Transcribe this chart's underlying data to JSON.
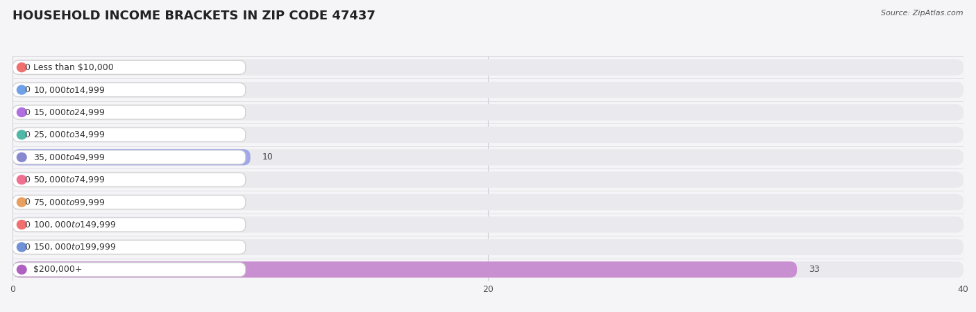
{
  "title": "HOUSEHOLD INCOME BRACKETS IN ZIP CODE 47437",
  "source": "Source: ZipAtlas.com",
  "categories": [
    "Less than $10,000",
    "$10,000 to $14,999",
    "$15,000 to $24,999",
    "$25,000 to $34,999",
    "$35,000 to $49,999",
    "$50,000 to $74,999",
    "$75,000 to $99,999",
    "$100,000 to $149,999",
    "$150,000 to $199,999",
    "$200,000+"
  ],
  "values": [
    0,
    0,
    0,
    0,
    10,
    0,
    0,
    0,
    0,
    33
  ],
  "bar_colors": [
    "#f4a0a0",
    "#a0c4f4",
    "#c9a0f4",
    "#7ecec4",
    "#a0a8e8",
    "#f4a0c0",
    "#f4cca0",
    "#f4a0a0",
    "#a0b8f4",
    "#c890d0"
  ],
  "icon_colors": [
    "#f07070",
    "#70a0e8",
    "#b070e0",
    "#50b8a8",
    "#8888d0",
    "#f07090",
    "#e8a060",
    "#f07070",
    "#7090d8",
    "#b060c0"
  ],
  "bg_color": "#f5f5f8",
  "bar_bg_color": "#eaeaee",
  "xlim": [
    0,
    40
  ],
  "xticks": [
    0,
    20,
    40
  ],
  "title_fontsize": 13,
  "label_fontsize": 9,
  "value_fontsize": 9
}
